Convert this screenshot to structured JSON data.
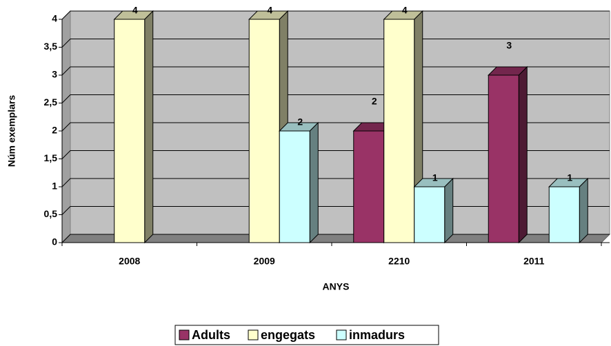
{
  "chart_data": {
    "type": "bar3d",
    "y_label": "Núm exemplars",
    "x_label": "ANYS",
    "categories": [
      "2008",
      "2009",
      "2210",
      "2011"
    ],
    "series": [
      {
        "name": "Adults",
        "color": "#993366",
        "values": [
          null,
          null,
          2,
          3
        ]
      },
      {
        "name": "engegats",
        "color": "#ffffcc",
        "values": [
          4,
          4,
          4,
          null
        ]
      },
      {
        "name": "inmadurs",
        "color": "#ccffff",
        "values": [
          null,
          2,
          1,
          1
        ]
      }
    ],
    "ylim": [
      0,
      4
    ],
    "yticks": [
      0,
      {
        "value": 0.5,
        "label": "0,5"
      },
      1,
      {
        "value": 1.5,
        "label": "1,5"
      },
      2,
      {
        "value": 2.5,
        "label": "2,5"
      },
      3,
      {
        "value": 3.5,
        "label": "3,5"
      },
      4
    ],
    "grid": true,
    "legend": "bottom"
  }
}
